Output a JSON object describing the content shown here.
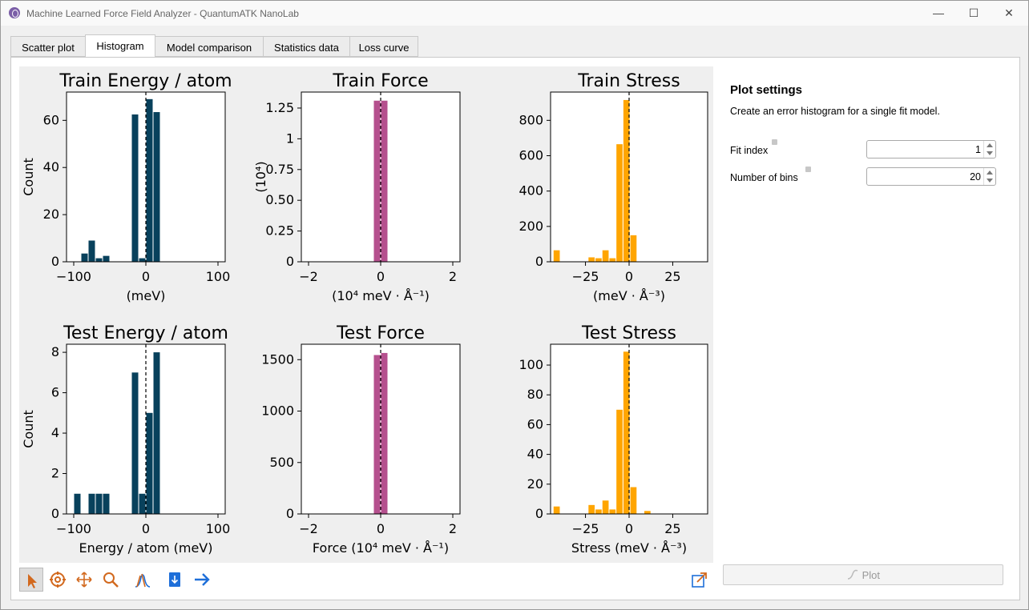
{
  "window": {
    "title": "Machine Learned Force Field Analyzer - QuantumATK NanoLab",
    "min_icon": "minimize-icon",
    "max_icon": "maximize-icon",
    "close_icon": "close-icon"
  },
  "tabs": [
    "Scatter plot",
    "Histogram",
    "Model comparison",
    "Statistics data",
    "Loss curve"
  ],
  "active_tab": "Histogram",
  "settings": {
    "title": "Plot settings",
    "description": "Create an error histogram for a single fit model.",
    "fit_index_label": "Fit index",
    "fit_index_value": "1",
    "bins_label": "Number of bins",
    "bins_value": "20",
    "plot_button": "Plot"
  },
  "toolbar": [
    "pointer-icon",
    "target-icon",
    "pan-icon",
    "zoom-icon",
    "fit-icon",
    "save-icon",
    "forward-icon"
  ],
  "colors": {
    "energy": "#08415c",
    "force": "#b5508e",
    "stress": "#ffa500"
  },
  "chart_data": [
    {
      "type": "bar",
      "title": "Train Energy / atom",
      "xlabel": "(meV)",
      "ylabel": "Count",
      "xlim": [
        -110,
        110
      ],
      "ylim": [
        0,
        72
      ],
      "xticks": [
        -100,
        0,
        100
      ],
      "yticks": [
        0,
        20,
        40,
        60
      ],
      "bin_edges": [
        -100,
        -90,
        -80,
        -70,
        -60,
        -50,
        -40,
        -30,
        -20,
        -10,
        0,
        10,
        20
      ],
      "counts": [
        0,
        3.5,
        9,
        1.5,
        2.5,
        0,
        0,
        0,
        62.5,
        1.5,
        69,
        63.5
      ]
    },
    {
      "type": "bar",
      "title": "Train Force",
      "xlabel": "(10⁴ meV · Å⁻¹)",
      "ylabel": "(10⁴)",
      "xlim": [
        -2.2,
        2.2
      ],
      "ylim": [
        0,
        1.38
      ],
      "xticks": [
        -2,
        0,
        2
      ],
      "yticks": [
        0.0,
        0.25,
        0.5,
        0.75,
        1.0,
        1.25
      ],
      "bin_edges": [
        -0.2,
        0,
        0.2
      ],
      "counts": [
        1.31,
        1.31
      ]
    },
    {
      "type": "bar",
      "title": "Train Stress",
      "xlabel": "(meV · Å⁻³)",
      "ylabel": "",
      "xlim": [
        -45,
        45
      ],
      "ylim": [
        0,
        960
      ],
      "xticks": [
        -25,
        0,
        25
      ],
      "yticks": [
        0,
        200,
        400,
        600,
        800
      ],
      "bin_edges": [
        -43.5,
        -39.5,
        -35.5,
        -31.5,
        -27.5,
        -23.5,
        -19.5,
        -15.5,
        -11.5,
        -7.5,
        -3.5,
        0.5,
        4.5,
        8.5
      ],
      "counts": [
        65,
        0,
        0,
        0,
        0,
        25,
        20,
        65,
        20,
        665,
        915,
        150,
        0
      ]
    },
    {
      "type": "bar",
      "title": "Test Energy / atom",
      "xlabel": "Energy / atom (meV)",
      "ylabel": "Count",
      "xlim": [
        -110,
        110
      ],
      "ylim": [
        0,
        8.4
      ],
      "xticks": [
        -100,
        0,
        100
      ],
      "yticks": [
        0,
        2,
        4,
        6,
        8
      ],
      "bin_edges": [
        -100,
        -90,
        -80,
        -70,
        -60,
        -50,
        -40,
        -30,
        -20,
        -10,
        0,
        10,
        20
      ],
      "counts": [
        1,
        0,
        1,
        1,
        1,
        0,
        0,
        0,
        7,
        1,
        5,
        8
      ]
    },
    {
      "type": "bar",
      "title": "Test Force",
      "xlabel": "Force (10⁴ meV · Å⁻¹)",
      "ylabel": "",
      "xlim": [
        -2.2,
        2.2
      ],
      "ylim": [
        0,
        1650
      ],
      "xticks": [
        -2,
        0,
        2
      ],
      "yticks": [
        0,
        500,
        1000,
        1500
      ],
      "bin_edges": [
        -0.2,
        0,
        0.2
      ],
      "counts": [
        1545,
        1565
      ]
    },
    {
      "type": "bar",
      "title": "Test Stress",
      "xlabel": "Stress (meV · Å⁻³)",
      "ylabel": "",
      "xlim": [
        -45,
        45
      ],
      "ylim": [
        0,
        114
      ],
      "xticks": [
        -25,
        0,
        25
      ],
      "yticks": [
        0,
        20,
        40,
        60,
        80,
        100
      ],
      "bin_edges": [
        -43.5,
        -39.5,
        -35.5,
        -31.5,
        -27.5,
        -23.5,
        -19.5,
        -15.5,
        -11.5,
        -7.5,
        -3.5,
        0.5,
        4.5,
        8.5,
        12.5,
        16.5,
        20.5
      ],
      "counts": [
        5,
        0,
        0,
        0,
        0,
        6,
        3,
        9,
        3,
        70,
        109,
        18,
        0,
        2,
        0,
        0
      ]
    }
  ]
}
